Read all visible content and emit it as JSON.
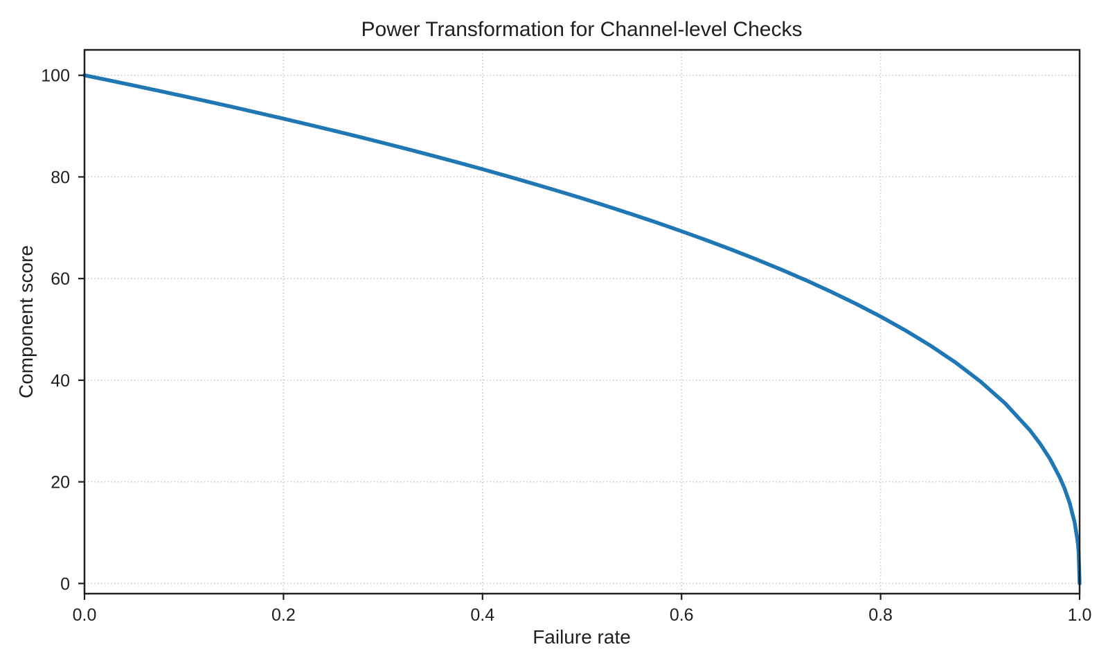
{
  "figure": {
    "background": "#ffffff"
  },
  "chart_data": {
    "type": "line",
    "title": "Power Transformation for Channel-level Checks",
    "xlabel": "Failure rate",
    "ylabel": "Component score",
    "xlim": [
      0.0,
      1.0
    ],
    "ylim": [
      -2,
      105
    ],
    "xticks": [
      0.0,
      0.2,
      0.4,
      0.6,
      0.8,
      1.0
    ],
    "xtick_labels": [
      "0.0",
      "0.2",
      "0.4",
      "0.6",
      "0.8",
      "1.0"
    ],
    "yticks": [
      0,
      20,
      40,
      60,
      80,
      100
    ],
    "ytick_labels": [
      "0",
      "20",
      "40",
      "60",
      "80",
      "100"
    ],
    "grid": true,
    "grid_style": "dotted",
    "legend": "none",
    "colors": {
      "line": "#1f77b4",
      "grid": "#c9c9c9",
      "spine": "#1f1f1f",
      "text": "#1f1f1f",
      "background": "#ffffff"
    },
    "series": [
      {
        "name": "component-score-curve",
        "color": "#1f77b4",
        "line_width": 5.5,
        "x": [
          0,
          0.025,
          0.05,
          0.075,
          0.1,
          0.125,
          0.15,
          0.175,
          0.2,
          0.225,
          0.25,
          0.275,
          0.3,
          0.325,
          0.35,
          0.375,
          0.4,
          0.425,
          0.45,
          0.475,
          0.5,
          0.525,
          0.55,
          0.575,
          0.6,
          0.625,
          0.65,
          0.675,
          0.7,
          0.725,
          0.75,
          0.775,
          0.8,
          0.825,
          0.85,
          0.875,
          0.9,
          0.925,
          0.95,
          0.96,
          0.97,
          0.98,
          0.985,
          0.99,
          0.995,
          0.998,
          0.999,
          1.0
        ],
        "y": [
          100,
          98.99,
          97.97,
          96.93,
          95.87,
          94.8,
          93.71,
          92.59,
          91.46,
          90.31,
          89.13,
          87.93,
          86.7,
          85.45,
          84.17,
          82.86,
          81.52,
          80.14,
          78.73,
          77.28,
          75.79,
          74.25,
          72.66,
          71.02,
          69.31,
          67.55,
          65.71,
          63.79,
          61.78,
          59.67,
          57.43,
          55.06,
          52.53,
          49.8,
          46.82,
          43.53,
          39.81,
          35.48,
          30.17,
          27.59,
          24.6,
          20.91,
          18.64,
          15.85,
          12.01,
          8.33,
          6.31,
          0
        ]
      }
    ]
  }
}
